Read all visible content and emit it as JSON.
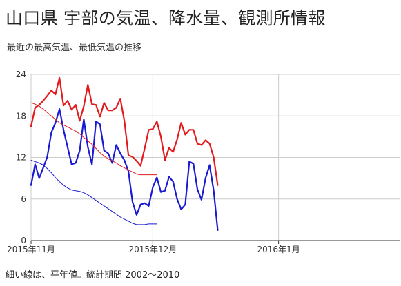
{
  "title": "山口県 宇部の気温、降水量、観測所情報",
  "subtitle": "最近の最高気温、最低気温の推移",
  "footnote": "細い線は、平年値。統計期間 2002～2010",
  "colors": {
    "high": "#e31a1c",
    "low": "#1a1ad4",
    "grid": "#cccccc",
    "axis": "#333333"
  },
  "chart_data": {
    "type": "line",
    "x_start": "2015-11-01",
    "x_end": "2016-01-31",
    "ylim": [
      0,
      24
    ],
    "yticks": [
      0,
      6,
      12,
      18,
      24
    ],
    "xticks": [
      {
        "date": "2015-11-01",
        "label": "2015年11月"
      },
      {
        "date": "2015-12-01",
        "label": "2015年12月"
      },
      {
        "date": "2016-01-01",
        "label": "2016年1月"
      }
    ],
    "grid": true,
    "series": [
      {
        "key": "high",
        "start": "2015-11-01",
        "values": [
          16.5,
          19.2,
          19.6,
          20.2,
          20.9,
          21.7,
          21.1,
          23.5,
          19.5,
          20.2,
          18.9,
          19.6,
          17.3,
          19.4,
          22.5,
          19.7,
          19.6,
          17.9,
          19.9,
          18.8,
          18.8,
          19.2,
          20.5,
          17.3,
          12.3,
          12.1,
          11.5,
          10.8,
          13.3,
          16.0,
          16.1,
          17.2,
          15.0,
          11.6,
          13.4,
          12.8,
          14.6,
          17.0,
          15.3,
          16.0,
          16.0,
          14.0,
          13.8,
          14.5,
          14.0,
          12.0,
          8.0
        ]
      },
      {
        "key": "low",
        "start": "2015-11-01",
        "values": [
          8.0,
          11.0,
          9.0,
          10.5,
          12.1,
          15.6,
          17.0,
          19.0,
          16.0,
          13.5,
          11.0,
          11.2,
          13.0,
          17.5,
          13.5,
          11.0,
          17.2,
          16.8,
          13.0,
          12.6,
          11.2,
          13.8,
          12.6,
          11.6,
          10.0,
          5.6,
          3.7,
          5.2,
          5.4,
          5.0,
          7.7,
          9.1,
          7.0,
          7.2,
          9.2,
          8.5,
          6.0,
          4.5,
          5.2,
          11.4,
          11.1,
          7.4,
          5.9,
          9.0,
          10.9,
          7.2,
          1.5
        ]
      },
      {
        "key": "high_normal",
        "start": "2015-11-01",
        "values": [
          19.9,
          19.7,
          19.4,
          19.0,
          18.5,
          18.0,
          17.5,
          17.0,
          16.7,
          16.4,
          16.1,
          15.8,
          15.4,
          14.9,
          14.4,
          13.9,
          13.3,
          12.7,
          12.2,
          11.8,
          11.5,
          11.2,
          10.8,
          10.5,
          10.2,
          9.9,
          9.6,
          9.5,
          9.5,
          9.5,
          9.5,
          9.5
        ]
      },
      {
        "key": "low_normal",
        "start": "2015-11-01",
        "values": [
          11.6,
          11.4,
          11.2,
          10.9,
          10.4,
          9.8,
          9.1,
          8.5,
          8.0,
          7.6,
          7.3,
          7.2,
          7.1,
          6.9,
          6.6,
          6.2,
          5.8,
          5.4,
          5.0,
          4.6,
          4.2,
          3.8,
          3.4,
          3.1,
          2.8,
          2.5,
          2.3,
          2.3,
          2.3,
          2.4,
          2.4,
          2.4
        ]
      }
    ]
  }
}
